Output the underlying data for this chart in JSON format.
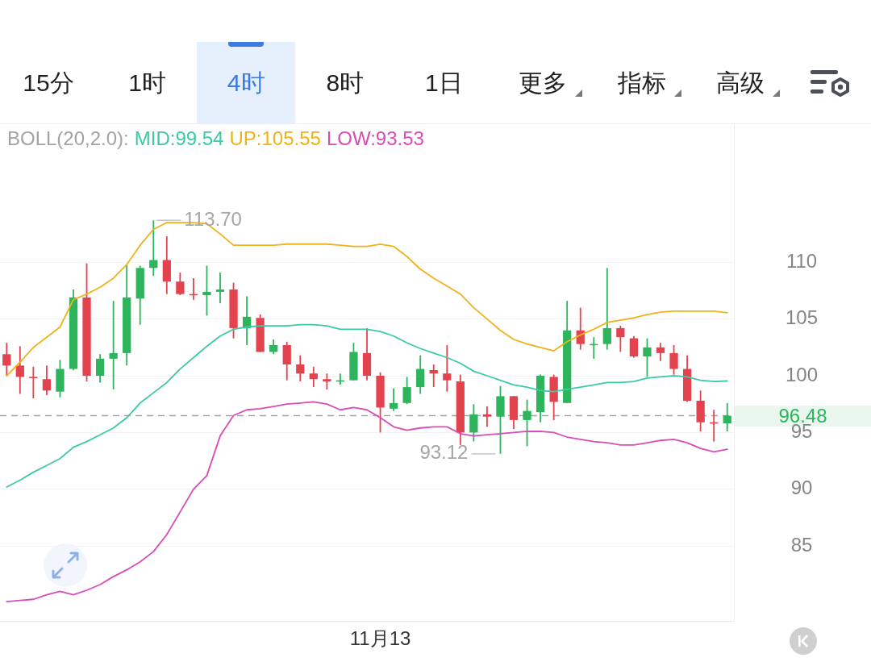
{
  "chart_data": {
    "type": "candlestick",
    "categories": [
      null,
      null,
      null,
      null,
      null,
      null,
      null,
      null,
      null,
      null,
      null,
      null,
      null,
      null,
      null,
      null,
      null,
      null,
      null,
      null,
      null,
      null,
      null,
      null,
      null,
      null,
      null,
      null,
      "11月13",
      null,
      null,
      null,
      null,
      null,
      null,
      null,
      null,
      null,
      null,
      null,
      null,
      null,
      null,
      null,
      null,
      null,
      null,
      null,
      null,
      null,
      null,
      null,
      null,
      null,
      null
    ],
    "ohlc": [
      [
        101.9,
        102.9,
        100.0,
        100.9
      ],
      [
        100.9,
        102.6,
        98.4,
        99.9
      ],
      [
        99.9,
        100.8,
        98.0,
        99.8
      ],
      [
        99.7,
        100.9,
        98.3,
        98.7
      ],
      [
        98.6,
        101.4,
        98.1,
        100.6
      ],
      [
        100.6,
        107.6,
        100.5,
        106.9
      ],
      [
        106.9,
        109.9,
        99.5,
        100.0
      ],
      [
        100.0,
        101.9,
        99.4,
        101.5
      ],
      [
        101.5,
        106.6,
        98.8,
        102.0
      ],
      [
        102.0,
        109.8,
        100.9,
        106.9
      ],
      [
        106.8,
        109.7,
        104.5,
        109.5
      ],
      [
        109.5,
        113.7,
        108.8,
        110.2
      ],
      [
        110.2,
        112.3,
        107.2,
        108.3
      ],
      [
        108.3,
        109.1,
        107.1,
        107.2
      ],
      [
        107.2,
        108.6,
        106.7,
        107.1
      ],
      [
        107.1,
        109.7,
        105.3,
        107.4
      ],
      [
        107.4,
        109.1,
        106.4,
        107.6
      ],
      [
        107.6,
        108.2,
        103.3,
        104.2
      ],
      [
        104.2,
        107.0,
        102.7,
        105.2
      ],
      [
        105.1,
        105.4,
        102.1,
        102.1
      ],
      [
        102.1,
        103.2,
        101.9,
        102.7
      ],
      [
        102.7,
        103.0,
        99.6,
        101.0
      ],
      [
        101.0,
        101.8,
        99.5,
        100.2
      ],
      [
        100.2,
        100.8,
        99.0,
        99.7
      ],
      [
        99.7,
        100.2,
        98.8,
        99.5
      ],
      [
        99.5,
        100.2,
        99.2,
        99.6
      ],
      [
        99.6,
        102.9,
        99.6,
        102.1
      ],
      [
        102.0,
        104.2,
        99.6,
        100.0
      ],
      [
        100.0,
        100.3,
        95.0,
        97.2
      ],
      [
        97.1,
        98.9,
        96.9,
        97.6
      ],
      [
        97.6,
        99.9,
        97.5,
        99.0
      ],
      [
        99.0,
        101.8,
        98.4,
        100.6
      ],
      [
        100.5,
        101.0,
        99.0,
        100.2
      ],
      [
        100.2,
        102.7,
        98.6,
        99.6
      ],
      [
        99.5,
        100.1,
        93.9,
        95.0
      ],
      [
        95.0,
        97.5,
        94.2,
        96.6
      ],
      [
        96.6,
        97.3,
        95.5,
        96.4
      ],
      [
        96.4,
        99.1,
        93.12,
        98.2
      ],
      [
        98.2,
        98.2,
        95.3,
        96.1
      ],
      [
        96.1,
        97.9,
        93.8,
        96.9
      ],
      [
        96.8,
        100.1,
        95.9,
        100.0
      ],
      [
        99.9,
        100.1,
        96.1,
        97.7
      ],
      [
        97.6,
        106.6,
        97.6,
        104.0
      ],
      [
        104.0,
        106.0,
        102.3,
        102.8
      ],
      [
        102.7,
        103.4,
        101.5,
        102.8
      ],
      [
        102.8,
        109.5,
        102.3,
        104.2
      ],
      [
        104.2,
        104.4,
        102.1,
        103.4
      ],
      [
        103.3,
        103.5,
        101.6,
        101.7
      ],
      [
        101.7,
        103.3,
        99.9,
        102.5
      ],
      [
        102.5,
        102.9,
        101.3,
        102.0
      ],
      [
        102.0,
        102.7,
        100.1,
        100.6
      ],
      [
        100.6,
        101.8,
        97.7,
        97.8
      ],
      [
        97.8,
        98.7,
        95.1,
        95.9
      ],
      [
        95.9,
        97.0,
        94.2,
        95.8
      ],
      [
        95.8,
        97.6,
        95.1,
        96.48
      ]
    ],
    "colors": [
      "#e3424f",
      "#e3424f",
      "#e3424f",
      "#e3424f",
      "#2db45d",
      "#2db45d",
      "#e3424f",
      "#2db45d",
      "#2db45d",
      "#2db45d",
      "#2db45d",
      "#2db45d",
      "#e3424f",
      "#e3424f",
      "#e3424f",
      "#2db45d",
      "#2db45d",
      "#e3424f",
      "#2db45d",
      "#e3424f",
      "#2db45d",
      "#e3424f",
      "#e3424f",
      "#e3424f",
      "#e3424f",
      "#2db45d",
      "#2db45d",
      "#e3424f",
      "#e3424f",
      "#2db45d",
      "#2db45d",
      "#2db45d",
      "#e3424f",
      "#e3424f",
      "#e3424f",
      "#2db45d",
      "#e3424f",
      "#2db45d",
      "#e3424f",
      "#2db45d",
      "#2db45d",
      "#e3424f",
      "#2db45d",
      "#e3424f",
      "#2db45d",
      "#2db45d",
      "#e3424f",
      "#e3424f",
      "#2db45d",
      "#e3424f",
      "#e3424f",
      "#e3424f",
      "#e3424f",
      "#e3424f",
      "#2db45d"
    ],
    "series": [
      {
        "type": "line",
        "name": "MID:99.54",
        "color": "#3cc9a6",
        "values": [
          90.2,
          90.8,
          91.5,
          92.1,
          92.7,
          93.7,
          94.2,
          94.8,
          95.4,
          96.3,
          97.6,
          98.5,
          99.4,
          100.6,
          101.6,
          102.6,
          103.5,
          104.1,
          104.3,
          104.4,
          104.4,
          104.4,
          104.5,
          104.5,
          104.4,
          104.1,
          104.1,
          104.1,
          103.9,
          103.5,
          102.9,
          102.4,
          102.0,
          101.6,
          101.1,
          100.4,
          100.0,
          99.6,
          99.2,
          99.0,
          98.7,
          98.6,
          98.8,
          99.0,
          99.2,
          99.4,
          99.4,
          99.5,
          99.8,
          99.9,
          100.0,
          99.9,
          99.6,
          99.5,
          99.54
        ]
      },
      {
        "type": "line",
        "name": "UP:105.55",
        "color": "#efb31a",
        "values": [
          100.0,
          101.2,
          102.5,
          103.4,
          104.3,
          106.7,
          107.2,
          107.8,
          108.6,
          109.8,
          111.5,
          112.9,
          113.5,
          113.5,
          113.5,
          113.4,
          112.5,
          111.5,
          111.5,
          111.5,
          111.5,
          111.6,
          111.6,
          111.6,
          111.6,
          111.5,
          111.4,
          111.4,
          111.6,
          111.4,
          110.5,
          109.4,
          108.6,
          107.9,
          107.2,
          106.0,
          105.0,
          104.0,
          103.2,
          102.8,
          102.5,
          102.2,
          103.0,
          103.6,
          104.1,
          104.7,
          104.9,
          105.1,
          105.4,
          105.6,
          105.7,
          105.7,
          105.7,
          105.7,
          105.55
        ]
      },
      {
        "type": "line",
        "name": "LOW:93.53",
        "color": "#d94cb8",
        "values": [
          80.1,
          80.2,
          80.3,
          80.7,
          81.0,
          80.7,
          81.1,
          81.6,
          82.3,
          82.9,
          83.6,
          84.5,
          86.0,
          88.0,
          90.0,
          91.2,
          94.7,
          96.5,
          97.0,
          97.1,
          97.3,
          97.5,
          97.6,
          97.7,
          97.5,
          97.0,
          97.2,
          97.0,
          96.3,
          95.5,
          95.2,
          95.4,
          95.5,
          95.5,
          94.9,
          94.7,
          94.8,
          94.9,
          95.0,
          95.1,
          95.1,
          95.0,
          94.6,
          94.4,
          94.2,
          94.1,
          93.9,
          93.9,
          94.1,
          94.3,
          94.4,
          94.1,
          93.6,
          93.3,
          93.53
        ]
      }
    ],
    "legend_title": "BOLL(20,2.0):",
    "legend": "top left",
    "ylim": [
      78.4,
      122.1
    ],
    "yticks": [
      85,
      90,
      95,
      100,
      105,
      110
    ],
    "grid": "y",
    "ref_lines": [
      {
        "axis": "y",
        "value": 96.48,
        "color": "#a3a3a3",
        "line_style": "dashed"
      }
    ],
    "annotations": [
      "15分",
      "1时",
      "4时",
      "8时",
      "1日",
      "更多",
      "指标",
      "高级",
      "113.70",
      "93.12",
      "96.48"
    ]
  }
}
